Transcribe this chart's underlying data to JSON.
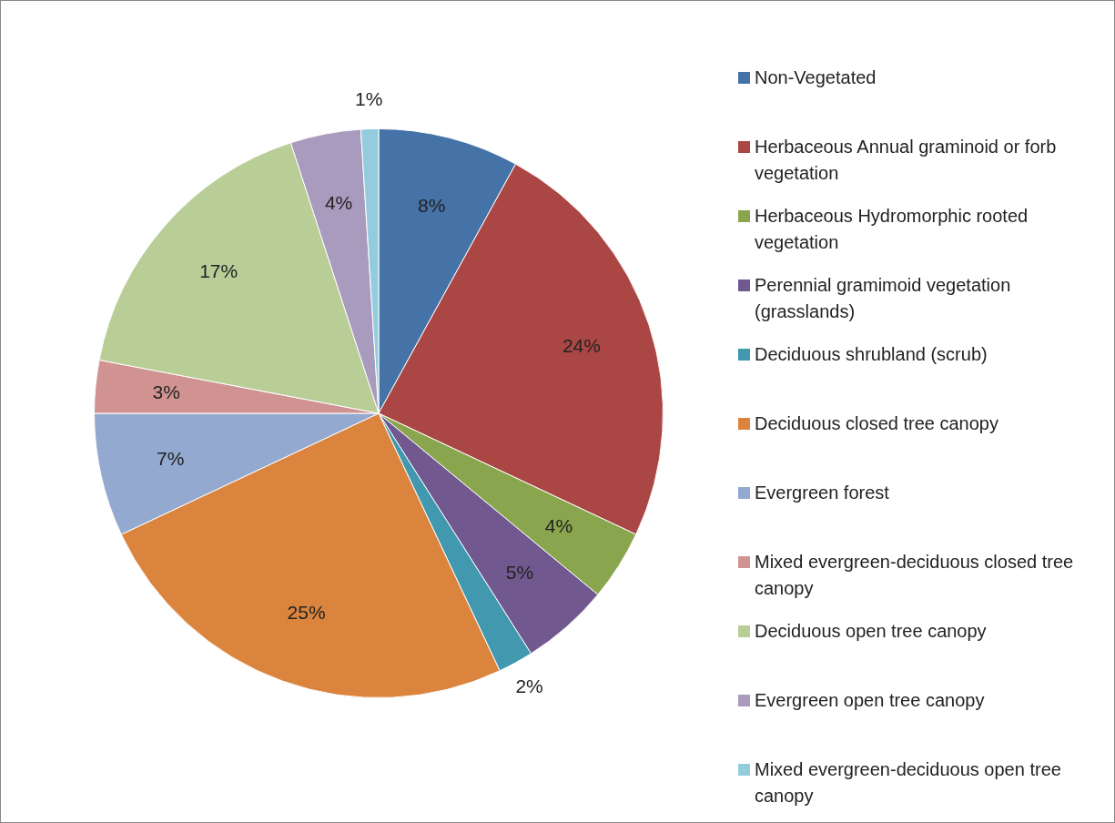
{
  "chart_data": {
    "type": "pie",
    "categories": [
      "Non-Vegetated",
      "Herbaceous Annual graminoid  or forb vegetation",
      "Herbaceous Hydromorphic rooted vegetation",
      "Perennial gramimoid  vegetation (grasslands)",
      "Deciduous shrubland (scrub)",
      "Deciduous closed tree canopy",
      "Evergreen forest",
      "Mixed evergreen-deciduous closed tree canopy",
      "Deciduous open tree canopy",
      "Evergreen open tree canopy",
      "Mixed  evergreen-deciduous open tree canopy"
    ],
    "values": [
      8,
      24,
      4,
      5,
      2,
      25,
      7,
      3,
      17,
      4,
      1
    ],
    "colors": [
      "#4572a7",
      "#aa4643",
      "#89a54e",
      "#71588f",
      "#4198af",
      "#db843d",
      "#93a9cf",
      "#d19392",
      "#b9cd96",
      "#a99bbd",
      "#93cddd"
    ],
    "value_labels": [
      "8%",
      "24%",
      "4%",
      "5%",
      "2%",
      "25%",
      "7%",
      "3%",
      "17%",
      "4%",
      "1%"
    ],
    "legend": "right"
  }
}
